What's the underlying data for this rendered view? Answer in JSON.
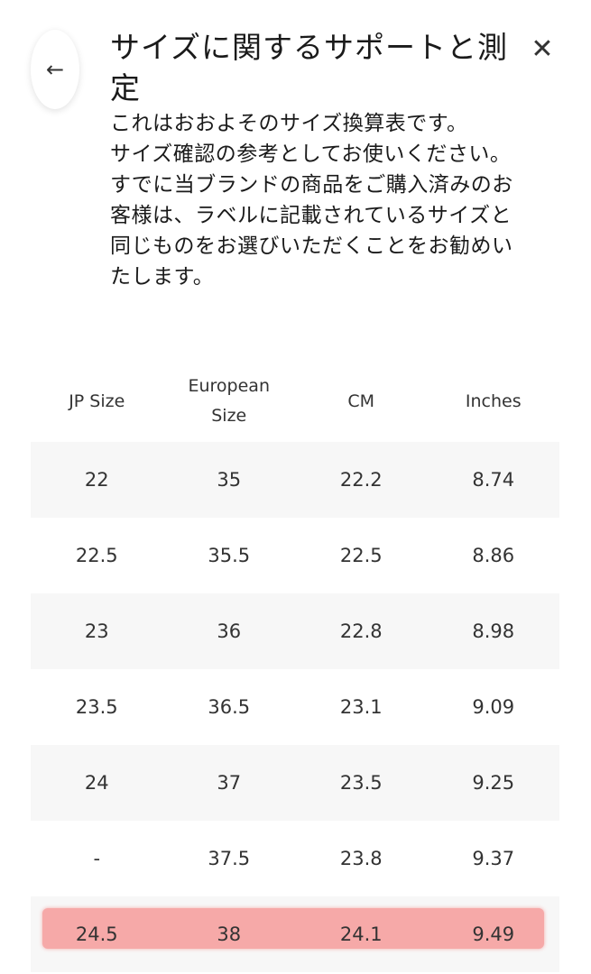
{
  "header": {
    "title": "サイズに関するサポートと測定",
    "back_icon": "arrow-left-icon",
    "close_icon": "close-icon"
  },
  "description": "これはおおよそのサイズ換算表です。\nサイズ確認の参考としてお使いください。\nすでに当ブランドの商品をご購入済みのお客様は、ラベルに記載されているサイズと同じものをお選びいただくことをお勧めいたします。",
  "table": {
    "columns": [
      "JP Size",
      "European\nSize",
      "CM",
      "Inches"
    ],
    "rows": [
      [
        "22",
        "35",
        "22.2",
        "8.74"
      ],
      [
        "22.5",
        "35.5",
        "22.5",
        "8.86"
      ],
      [
        "23",
        "36",
        "22.8",
        "8.98"
      ],
      [
        "23.5",
        "36.5",
        "23.1",
        "9.09"
      ],
      [
        "24",
        "37",
        "23.5",
        "9.25"
      ],
      [
        "-",
        "37.5",
        "23.8",
        "9.37"
      ],
      [
        "24.5",
        "38",
        "24.1",
        "9.49"
      ]
    ],
    "highlighted_row": 6,
    "highlight_color": "#f6a9a8"
  }
}
